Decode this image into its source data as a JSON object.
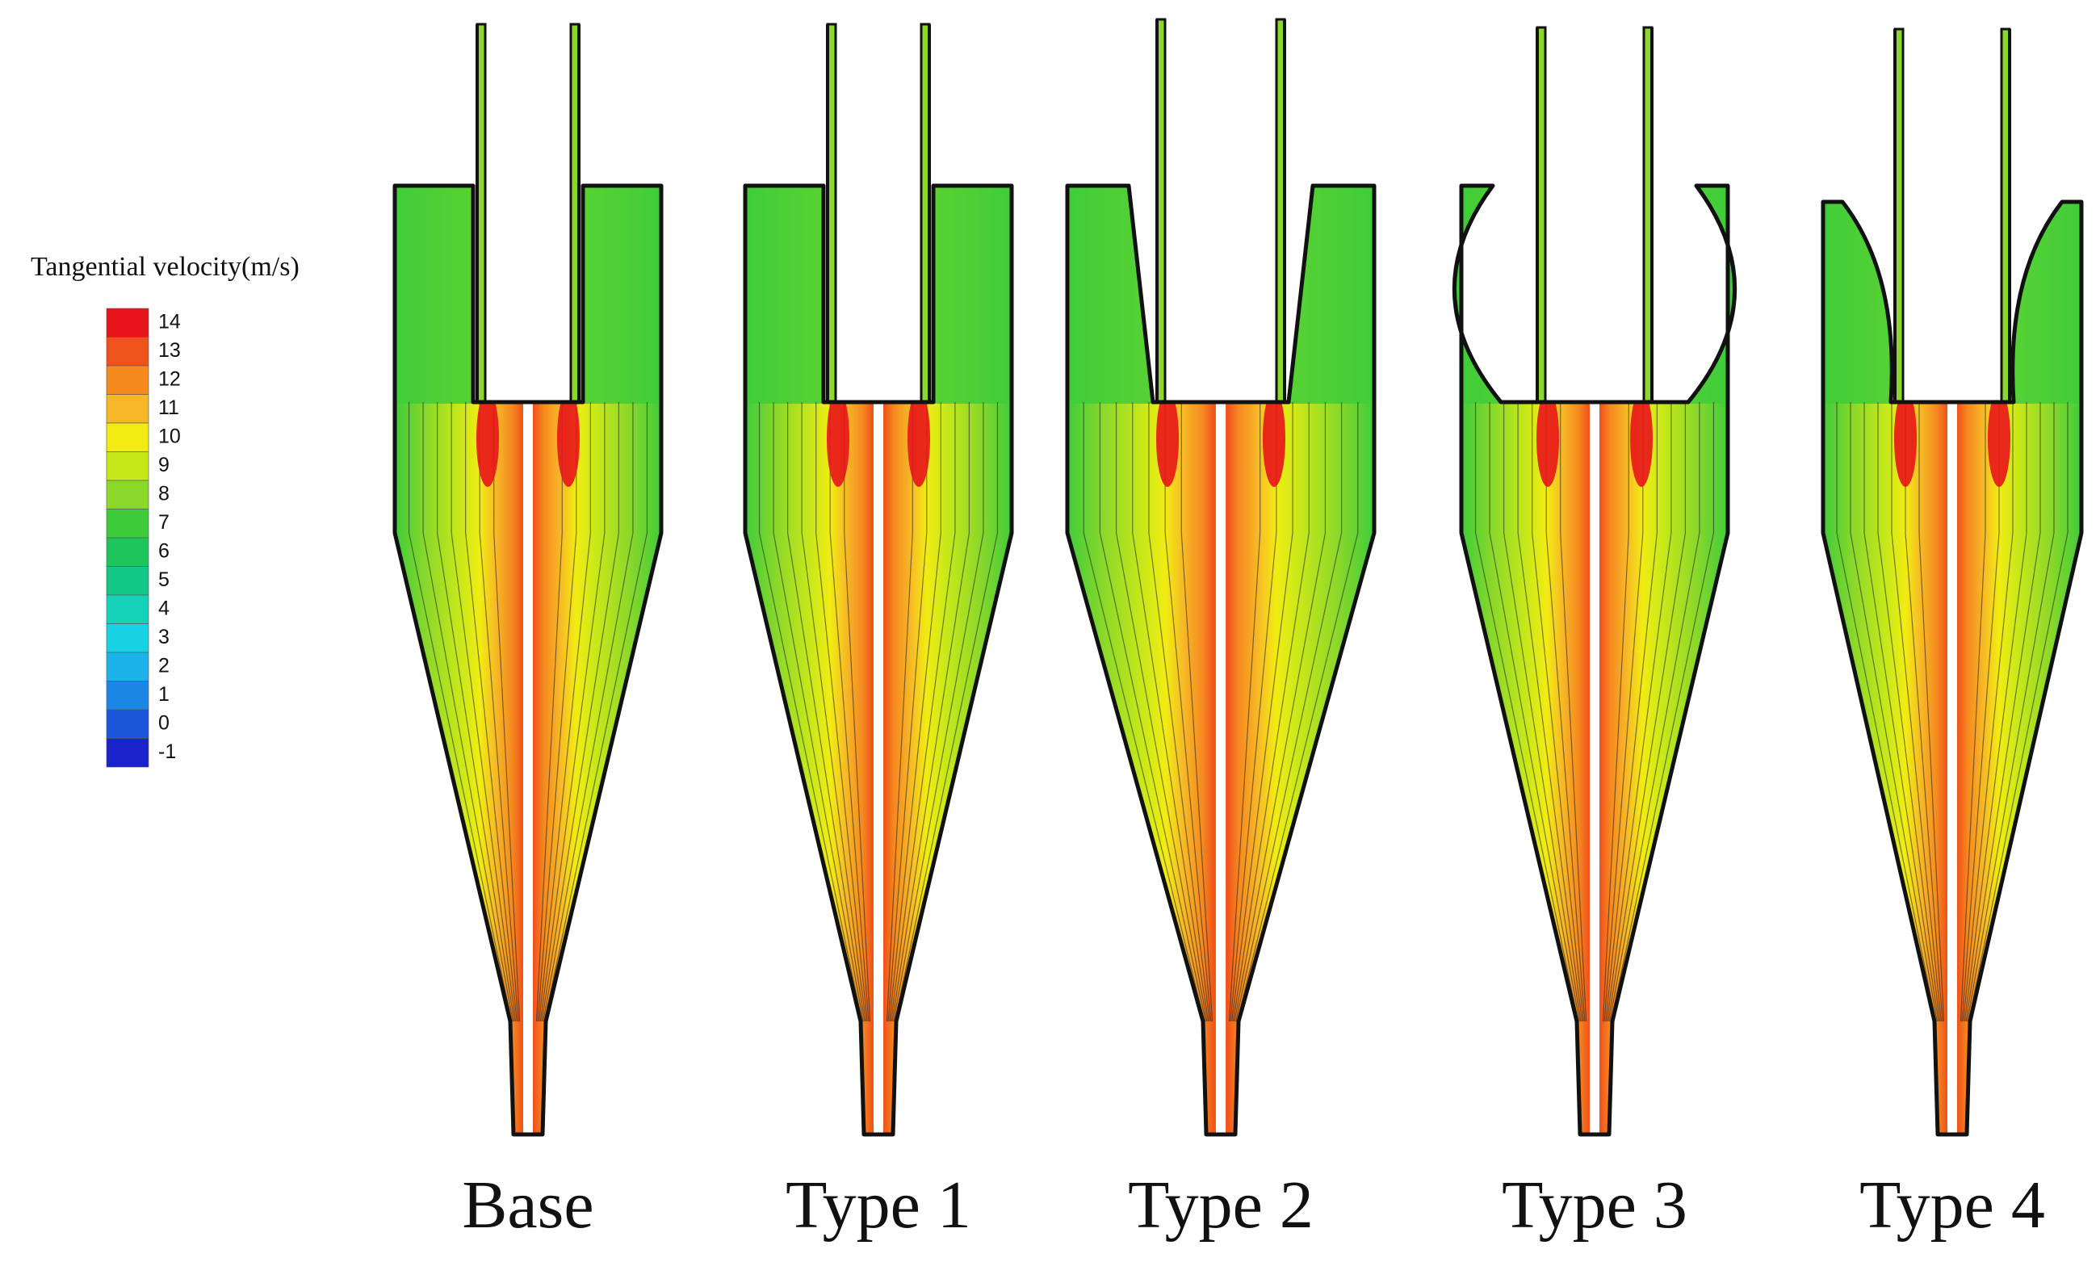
{
  "legend": {
    "title": "Tangential velocity(m/s)",
    "levels": [
      {
        "value": "14",
        "color": "#e8141a"
      },
      {
        "value": "13",
        "color": "#f0521c"
      },
      {
        "value": "12",
        "color": "#f58a1f"
      },
      {
        "value": "11",
        "color": "#f7b827"
      },
      {
        "value": "10",
        "color": "#f2ec13"
      },
      {
        "value": "9",
        "color": "#c6e81a"
      },
      {
        "value": "8",
        "color": "#8cd82a"
      },
      {
        "value": "7",
        "color": "#3fcc3a"
      },
      {
        "value": "6",
        "color": "#1ec55a"
      },
      {
        "value": "5",
        "color": "#12c888"
      },
      {
        "value": "4",
        "color": "#14d3b8"
      },
      {
        "value": "3",
        "color": "#18d2e4"
      },
      {
        "value": "2",
        "color": "#1bb4ea"
      },
      {
        "value": "1",
        "color": "#1b86e4"
      },
      {
        "value": "0",
        "color": "#1a55da"
      },
      {
        "value": "-1",
        "color": "#1a22cc"
      }
    ]
  },
  "cases": [
    {
      "label": "Base",
      "vortex_finder": "straight"
    },
    {
      "label": "Type 1",
      "vortex_finder": "straight"
    },
    {
      "label": "Type 2",
      "vortex_finder": "conical"
    },
    {
      "label": "Type 3",
      "vortex_finder": "concave"
    },
    {
      "label": "Type 4",
      "vortex_finder": "convex"
    }
  ]
}
